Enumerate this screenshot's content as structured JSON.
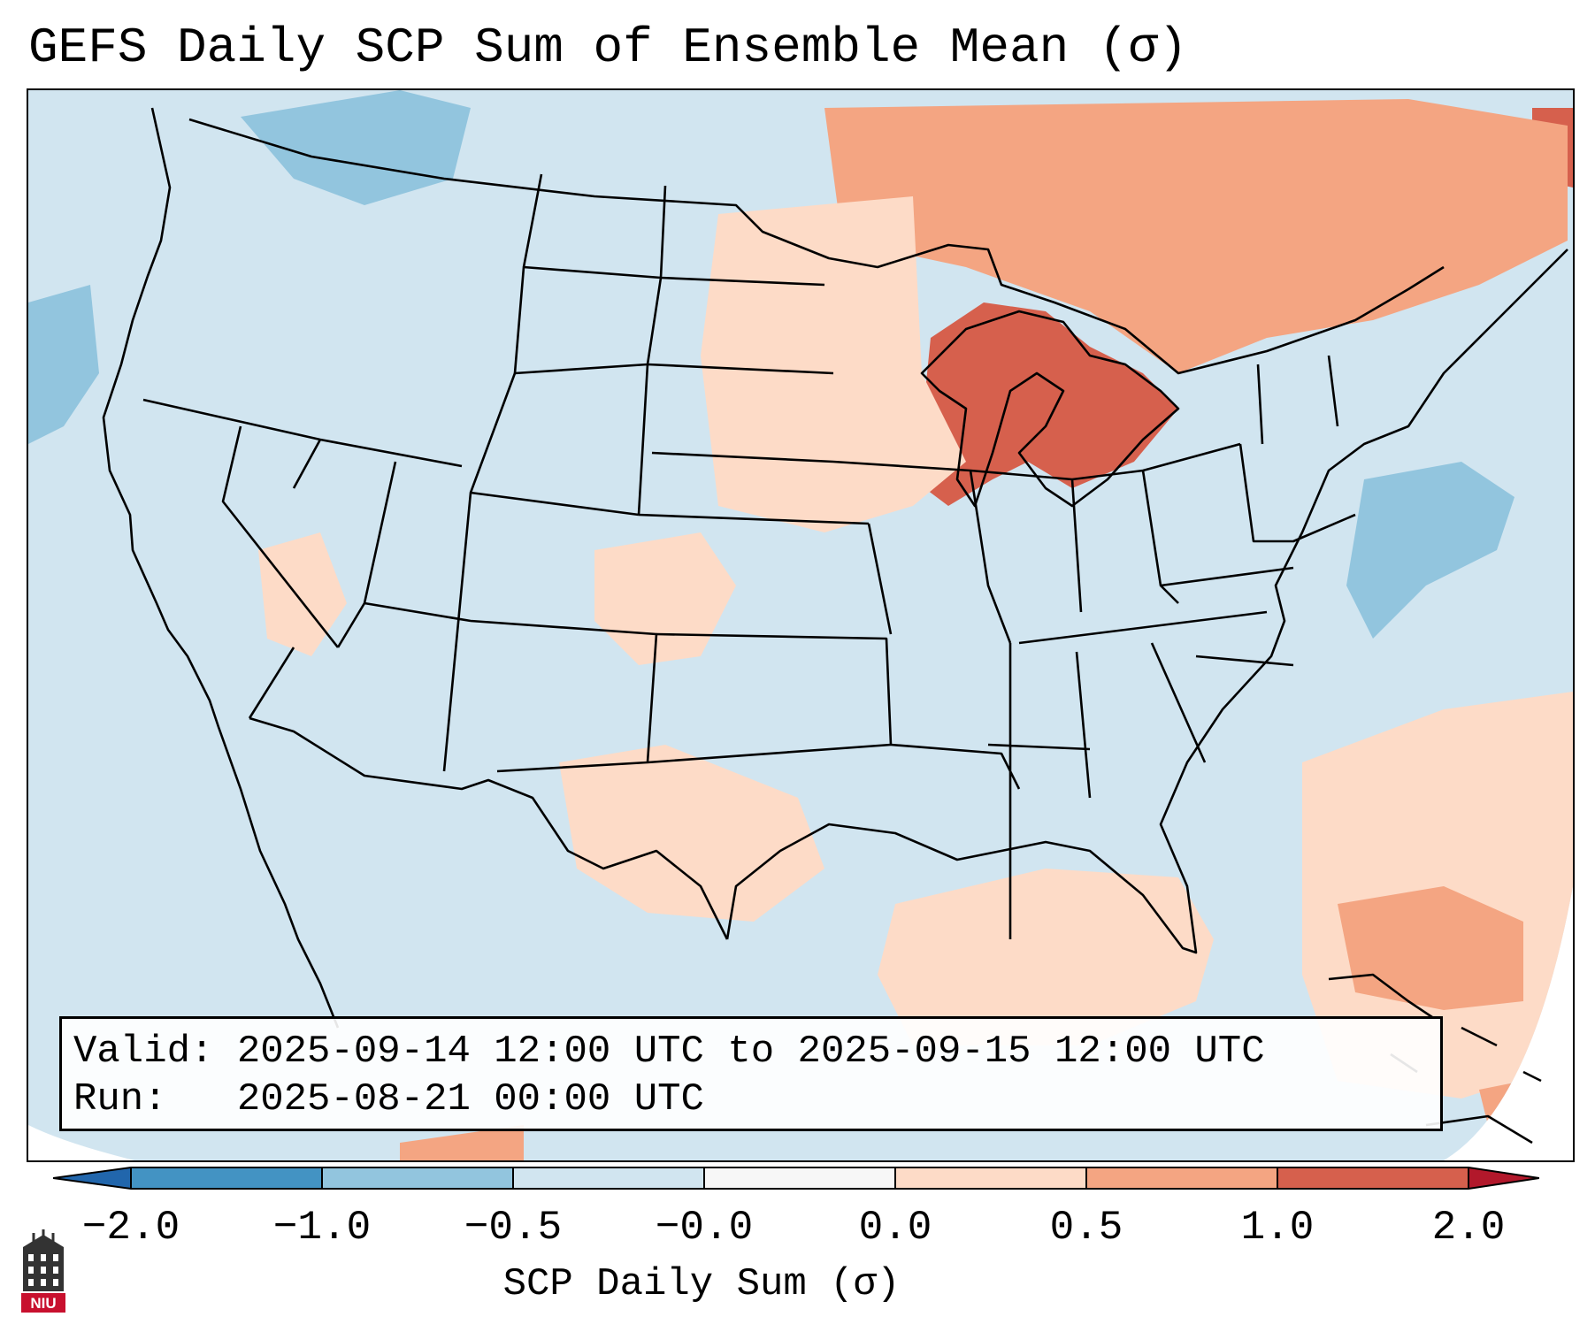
{
  "title": "GEFS Daily SCP Sum of Ensemble Mean (σ)",
  "info": {
    "valid_line": "Valid: 2025-09-14 12:00 UTC to 2025-09-15 12:00 UTC",
    "run_line": "Run:   2025-08-21 00:00 UTC"
  },
  "colorbar": {
    "label": "SCP Daily Sum (σ)",
    "ticks": [
      "−2.0",
      "−1.0",
      "−0.5",
      "−0.0",
      "0.0",
      "0.5",
      "1.0",
      "2.0"
    ],
    "colors": [
      "#4393c3",
      "#92c5de",
      "#d1e5f0",
      "#f7f7f7",
      "#fddbc7",
      "#f4a582",
      "#d6604d"
    ],
    "extend_low": "#2166ac",
    "extend_high": "#b2182b"
  },
  "logo": {
    "text": "NIU",
    "color": "#c8102e"
  },
  "map": {
    "background_color": "#d1e5f0",
    "anomaly_regions": [
      {
        "name": "upper-midwest-great-lakes",
        "level": "1.0 to 2.0",
        "color": "#d6604d"
      },
      {
        "name": "ontario-quebec",
        "level": "0.5 to 1.0",
        "color": "#f4a582"
      },
      {
        "name": "upper-plains",
        "level": "0.0 to 0.5",
        "color": "#fddbc7"
      },
      {
        "name": "southern-plains-gulf",
        "level": "0.0 to 0.5",
        "color": "#fddbc7"
      },
      {
        "name": "caribbean",
        "level": "0.5 to 1.0",
        "color": "#f4a582"
      },
      {
        "name": "mid-atlantic-offshore",
        "level": "-1.0 to -0.5",
        "color": "#92c5de"
      },
      {
        "name": "pacific-northwest",
        "level": "-1.0 to -0.5",
        "color": "#92c5de"
      }
    ]
  }
}
